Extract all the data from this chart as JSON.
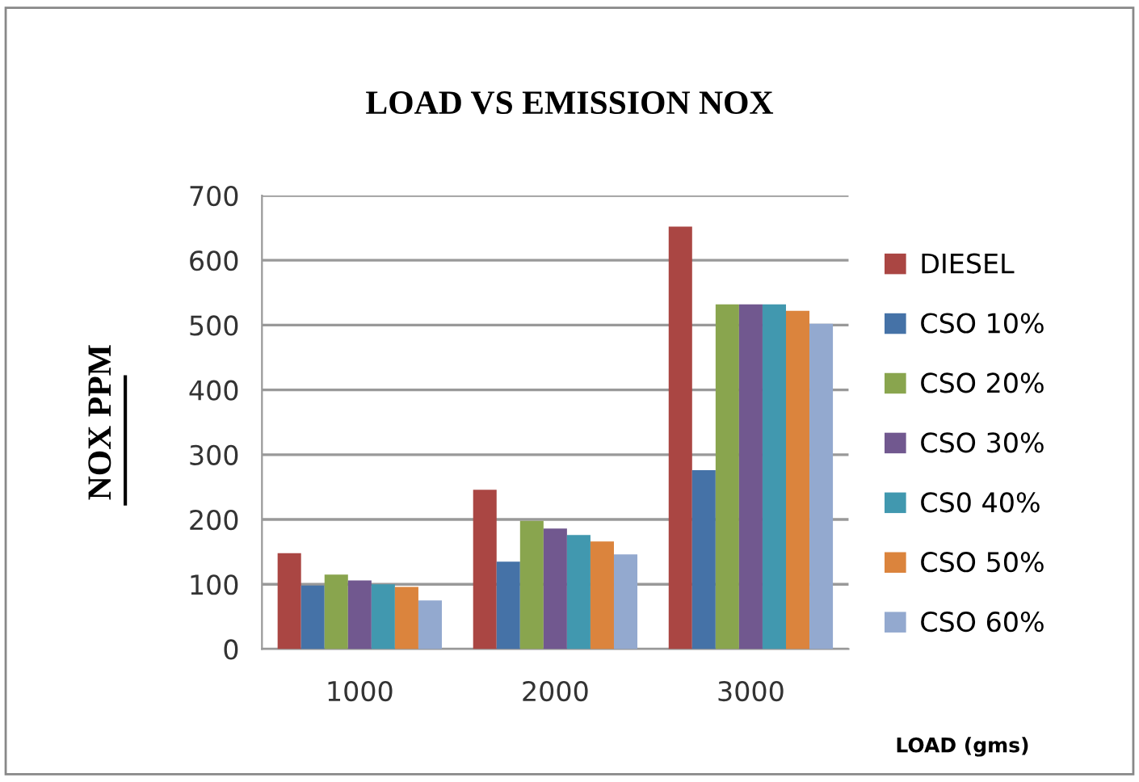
{
  "chart_data": {
    "type": "bar",
    "title": "LOAD VS EMISSION NOX",
    "ylabel": "NOX PPM",
    "xlabel": "LOAD (gms)",
    "categories": [
      "1000",
      "2000",
      "3000"
    ],
    "series": [
      {
        "name": "DIESEL",
        "color": "#aa4643",
        "values": [
          148,
          246,
          652
        ]
      },
      {
        "name": "CSO 10%",
        "color": "#4572a7",
        "values": [
          98,
          135,
          276
        ]
      },
      {
        "name": "CSO 20%",
        "color": "#89a54e",
        "values": [
          115,
          198,
          532
        ]
      },
      {
        "name": "CSO 30%",
        "color": "#71588f",
        "values": [
          106,
          186,
          532
        ]
      },
      {
        "name": "CS0 40%",
        "color": "#4198af",
        "values": [
          100,
          176,
          532
        ]
      },
      {
        "name": "CSO 50%",
        "color": "#db843d",
        "values": [
          96,
          166,
          522
        ]
      },
      {
        "name": "CSO 60%",
        "color": "#93a9cf",
        "values": [
          75,
          146,
          502
        ]
      }
    ],
    "ylim": [
      0,
      700
    ],
    "yticks": [
      0,
      100,
      200,
      300,
      400,
      500,
      600,
      700
    ],
    "grid": "y",
    "legend": "right"
  }
}
